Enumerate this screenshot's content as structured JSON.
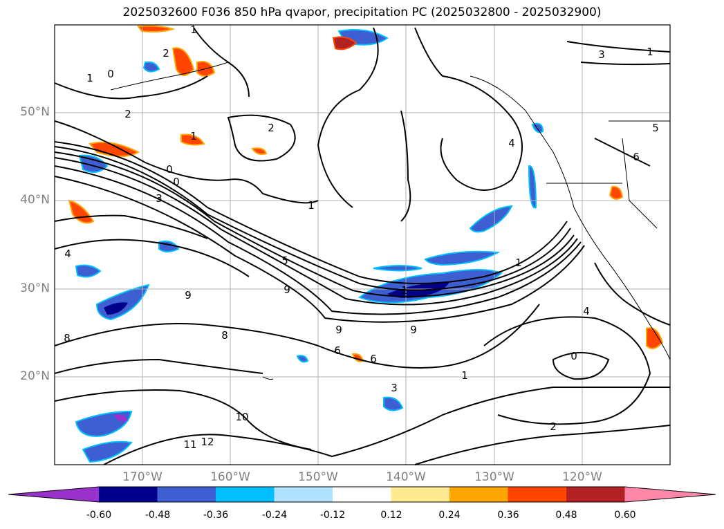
{
  "title": "2025032600 F036 850 hPa qvapor, precipitation PC (2025032800 - 2025032900)",
  "map": {
    "lat_labels": [
      "50°N",
      "40°N",
      "30°N",
      "20°N"
    ],
    "lat_values": [
      50,
      40,
      30,
      20
    ],
    "lon_labels": [
      "170°W",
      "160°W",
      "150°W",
      "140°W",
      "130°W",
      "120°W"
    ],
    "lon_values": [
      -170,
      -160,
      -150,
      -140,
      -130,
      -120
    ],
    "extent": {
      "lon_min": -180,
      "lon_max": -110,
      "lat_min": 10,
      "lat_max": 60
    },
    "contour_labels": [
      "1",
      "0",
      "2",
      "2",
      "1",
      "0",
      "2",
      "1",
      "0",
      "4",
      "3",
      "1",
      "5",
      "9",
      "9",
      "8",
      "8",
      "9",
      "9",
      "6",
      "6",
      "3",
      "1",
      "10",
      "12",
      "11",
      "1",
      "1",
      "4",
      "0",
      "2",
      "3",
      "1",
      "5",
      "6",
      "4"
    ]
  },
  "colorbar": {
    "ticks": [
      "-0.60",
      "-0.48",
      "-0.36",
      "-0.24",
      "-0.12",
      "0.12",
      "0.24",
      "0.36",
      "0.48",
      "0.60"
    ],
    "colors": [
      "#9932cc",
      "#00008b",
      "#3d5fd1",
      "#00bfff",
      "#b0e2ff",
      "#ffffff",
      "#ffe991",
      "#ffa500",
      "#ff4500",
      "#b22222",
      "#ff88aa"
    ],
    "extend": "both"
  }
}
